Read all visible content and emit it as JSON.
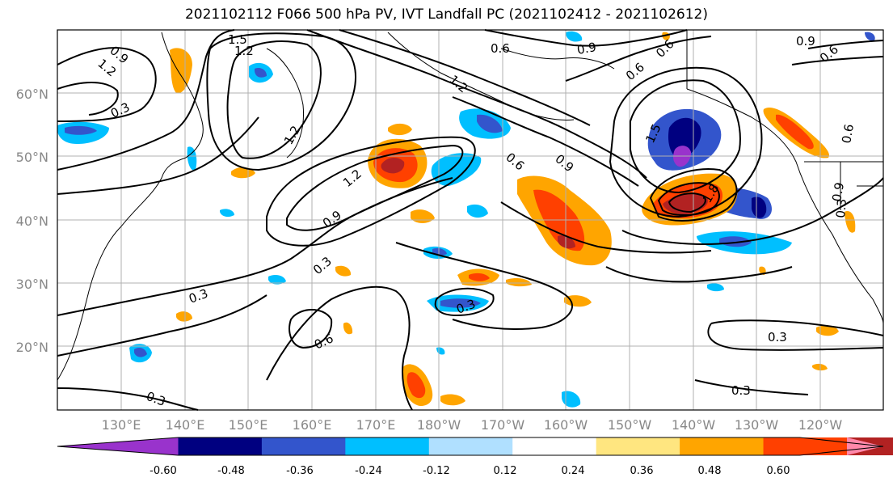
{
  "title": "2021102112 F066 500 hPa PV, IVT Landfall PC (2021102412 - 2021102612)",
  "lat_labels": [
    "60°N",
    "50°N",
    "40°N",
    "30°N",
    "20°N"
  ],
  "lon_labels": [
    "130°E",
    "140°E",
    "150°E",
    "160°E",
    "170°E",
    "180°W",
    "170°W",
    "160°W",
    "150°W",
    "140°W",
    "130°W",
    "120°W"
  ],
  "contour_labels": [
    "1.5",
    "1.2",
    "0.9",
    "1.2",
    "0.3",
    "1.2",
    "0.6",
    "0.9",
    "0.6",
    "0.6",
    "0.9",
    "0.6",
    "1.2",
    "1.2",
    "0.9",
    "0.6",
    "0.9",
    "1.5",
    "1.8",
    "0.9",
    "0.6",
    "0.3",
    "0.3",
    "0.3",
    "0.6",
    "0.3",
    "0.3",
    "0.3",
    "0.3"
  ],
  "colorbar": {
    "ticks": [
      "-0.60",
      "-0.48",
      "-0.36",
      "-0.24",
      "-0.12",
      "0.12",
      "0.24",
      "0.36",
      "0.48",
      "0.60"
    ],
    "colors": [
      "#9933cc",
      "#000080",
      "#3355cc",
      "#00bfff",
      "#b0e0ff",
      "#ffffff",
      "#ffe680",
      "#ffa500",
      "#ff4000",
      "#b22222",
      "#ff88aa"
    ]
  },
  "colors": {
    "positive_strong": "#ff4000",
    "negative_strong": "#000080",
    "contour": "#000000"
  }
}
